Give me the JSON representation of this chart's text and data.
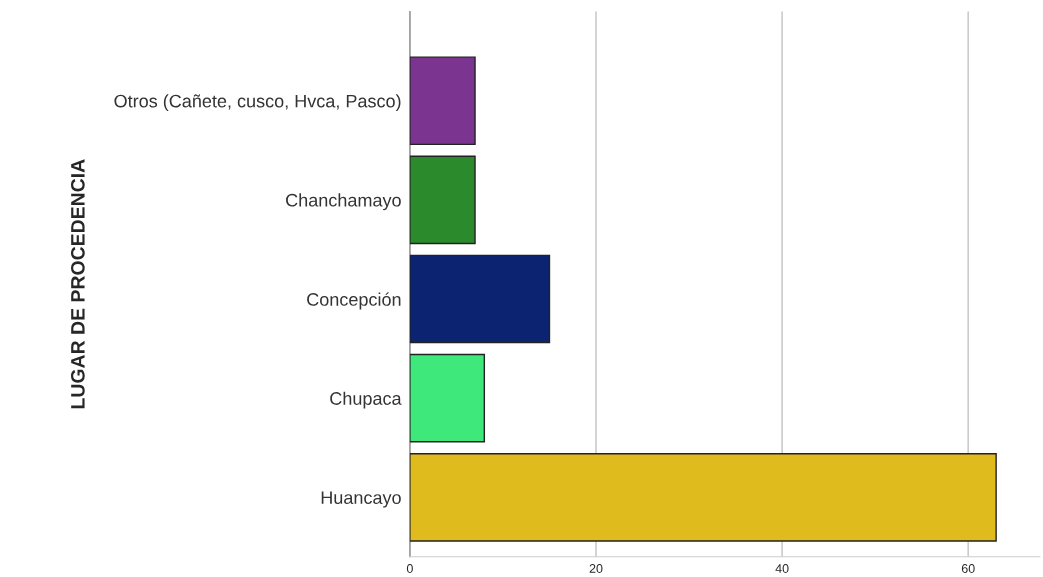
{
  "chart_data": {
    "type": "bar",
    "orientation": "horizontal",
    "ylabel": "LUGAR DE PROCEDENCIA",
    "categories": [
      "Otros (Cañete, cusco, Hvca, Pasco)",
      "Chanchamayo",
      "Concepción",
      "Chupaca",
      "Huancayo"
    ],
    "values": [
      7,
      7,
      15,
      8,
      63
    ],
    "colors": [
      "#7b3590",
      "#2b8a2b",
      "#0b2370",
      "#3ee87a",
      "#e0bb1e"
    ],
    "xlim": [
      0,
      67.7
    ],
    "xticks": [
      0,
      20,
      40,
      60
    ],
    "grid": "x",
    "legend": false
  }
}
